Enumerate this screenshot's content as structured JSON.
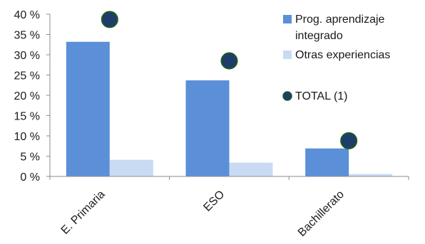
{
  "chart_data": {
    "type": "bar",
    "categories": [
      "E. Primaria",
      "ESO",
      "Bachillerato"
    ],
    "series": [
      {
        "name": "Prog. aprendizaje integrado",
        "values": [
          33.2,
          23.7,
          6.9
        ],
        "color": "#5b8fd8",
        "kind": "bar"
      },
      {
        "name": "Otras experiencias",
        "values": [
          4.1,
          3.4,
          0.6
        ],
        "color": "#c9dbf3",
        "kind": "bar"
      },
      {
        "name": "TOTAL (1)",
        "values": [
          38.7,
          28.5,
          8.8
        ],
        "color": "#1f3d6b",
        "kind": "marker"
      }
    ],
    "legend": [
      {
        "lines": [
          "Prog. aprendizaje",
          "integrado"
        ],
        "series": 0
      },
      {
        "lines": [
          "Otras experiencias"
        ],
        "series": 1
      },
      {
        "lines": [
          "TOTAL (1)"
        ],
        "series": 2
      }
    ],
    "y_ticks": [
      "0 %",
      "5 %",
      "10 %",
      "15 %",
      "20 %",
      "25 %",
      "30 %",
      "35 %",
      "40 %"
    ],
    "ylim": [
      0,
      40
    ],
    "grid": false,
    "legend_position": "right",
    "title": "",
    "xlabel": "",
    "ylabel": "",
    "marker_edge_color": "#1e5a1e"
  }
}
